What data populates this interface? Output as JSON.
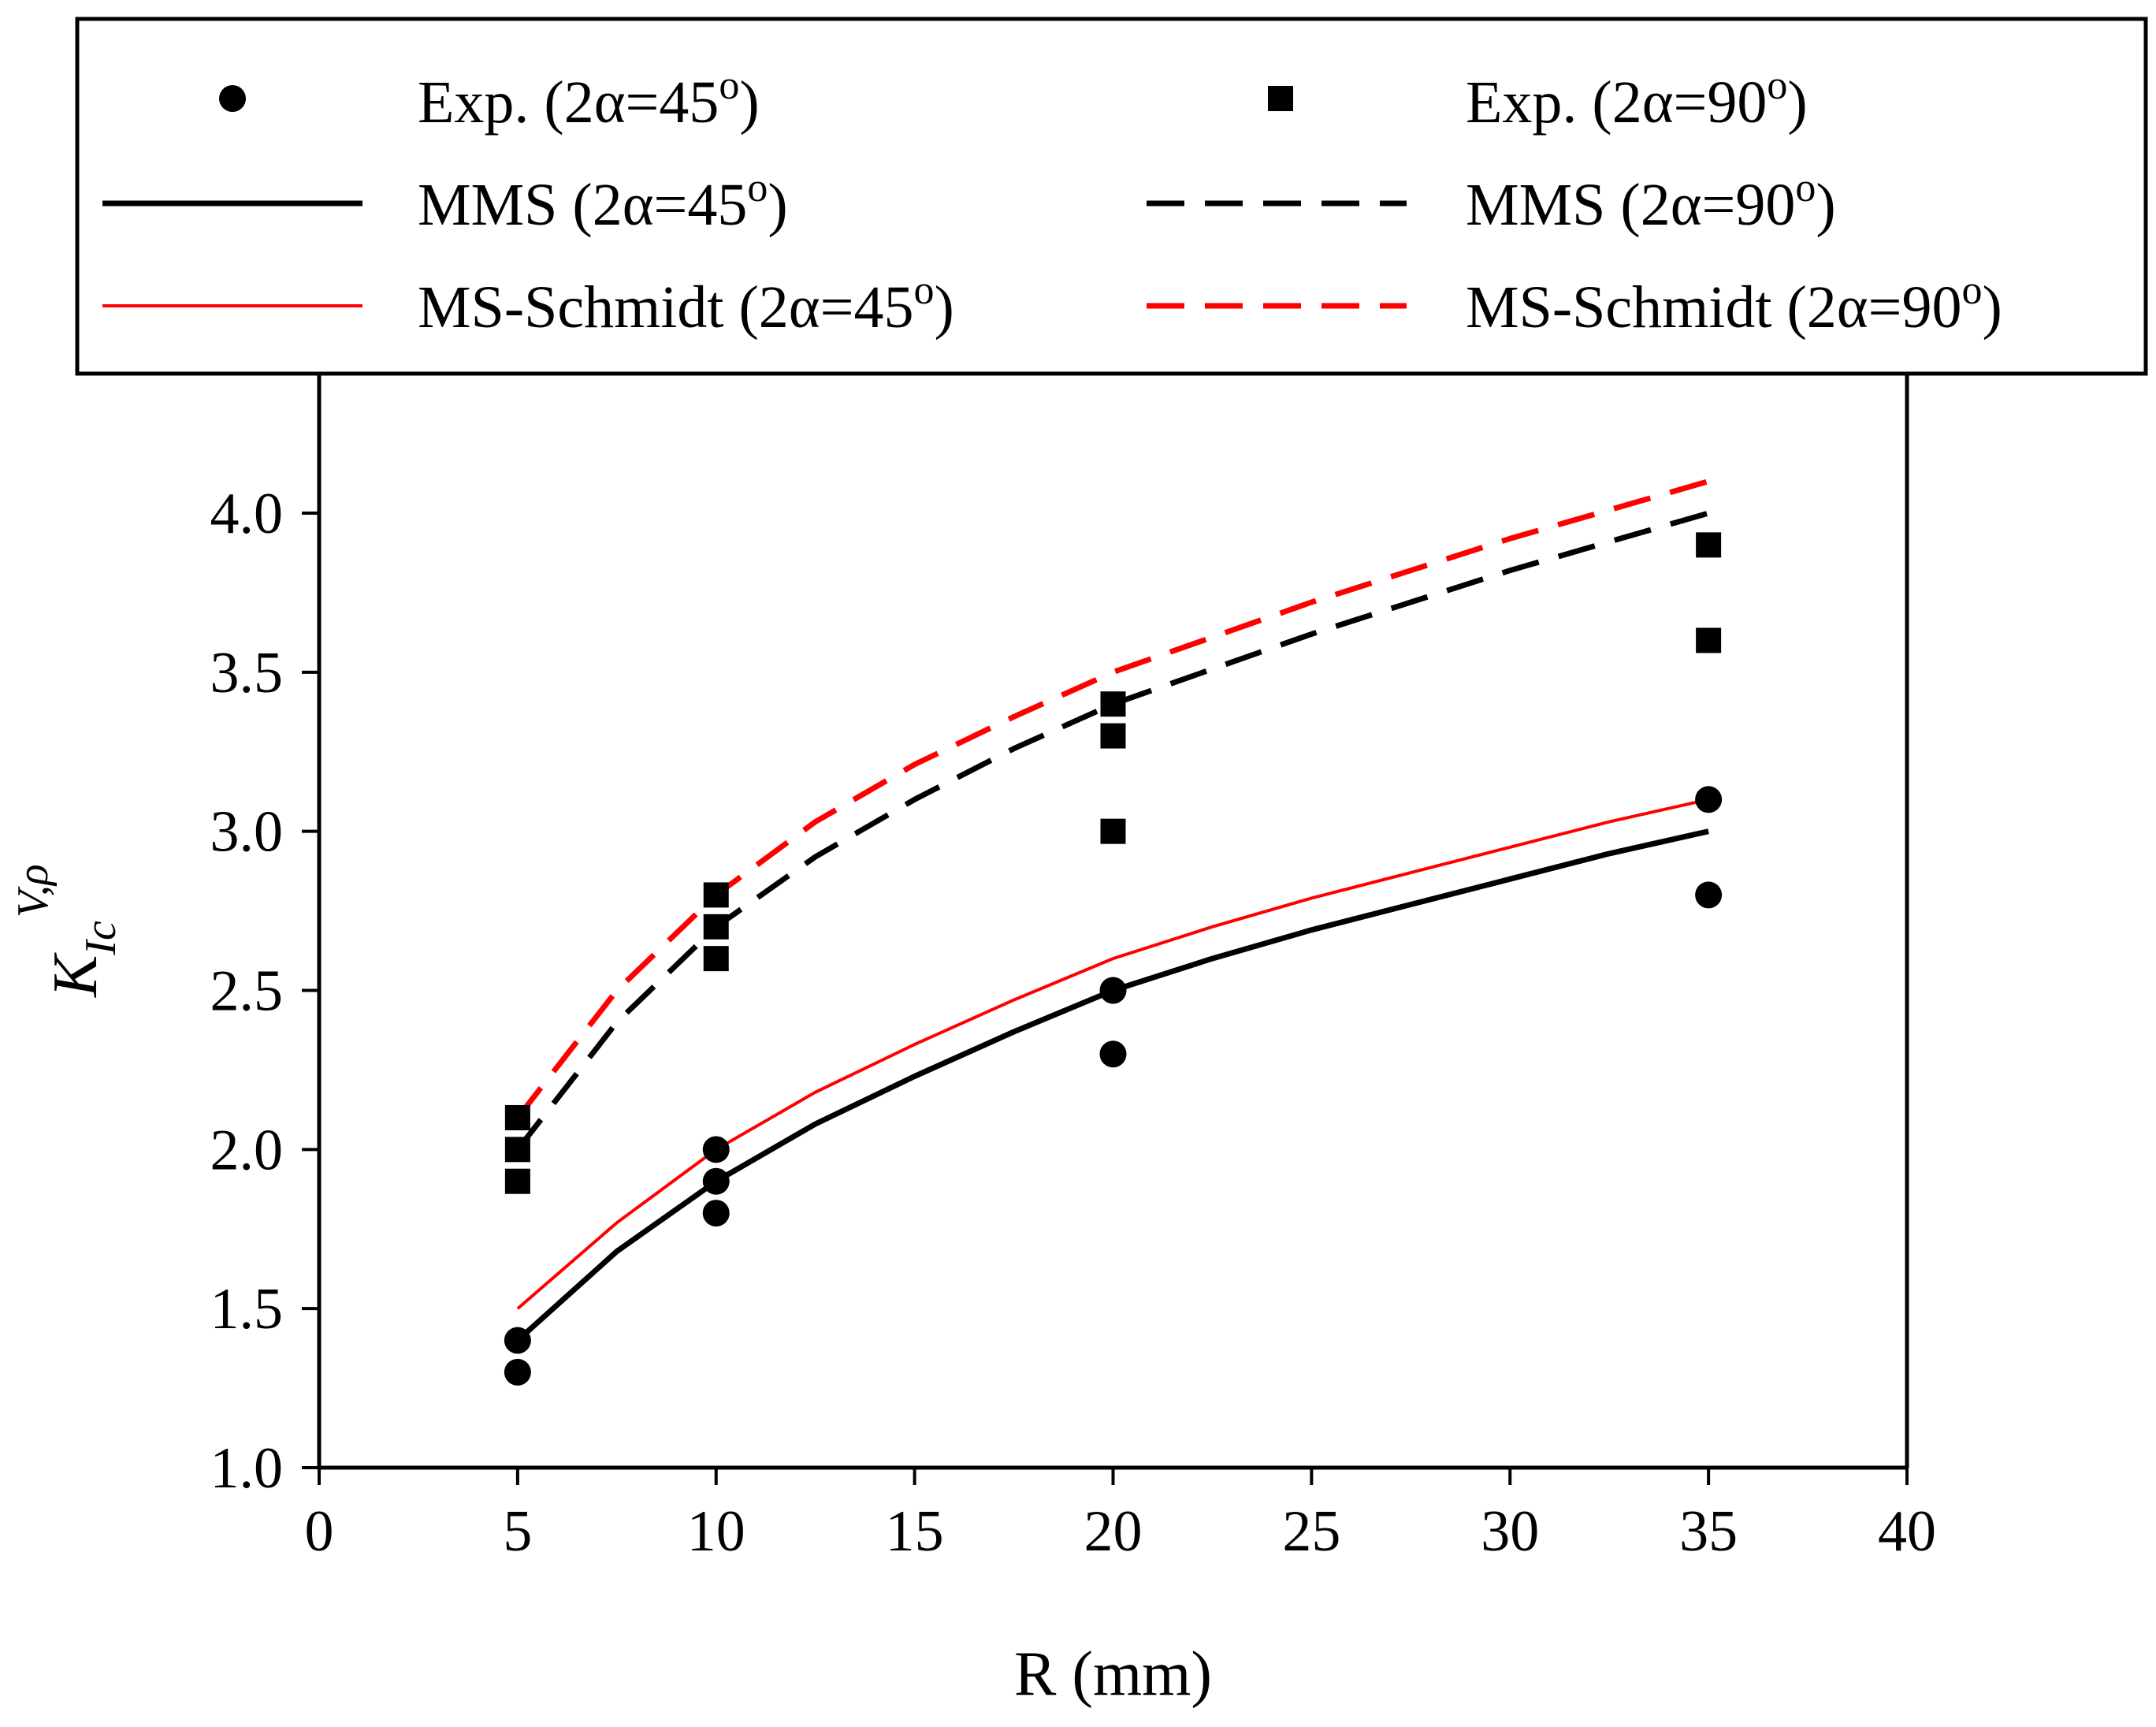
{
  "chart_data": {
    "type": "scatter",
    "title": "",
    "xlabel": "R (mm)",
    "ylabel": {
      "base": "K",
      "subscript": "Ic",
      "superscript": "V,ρ"
    },
    "xlim": [
      0,
      40
    ],
    "ylim": [
      1.0,
      4.3
    ],
    "xticks": [
      "0",
      "5",
      "10",
      "15",
      "20",
      "25",
      "30",
      "35",
      "40"
    ],
    "yticks": [
      "1.0",
      "1.5",
      "2.0",
      "2.5",
      "3.0",
      "3.5",
      "4.0"
    ],
    "grid": false,
    "legend_position": "top",
    "series": [
      {
        "name": "Exp. (2α=45°)",
        "label_main": "Exp. (2α=45",
        "label_sup": "o",
        "label_end": ")",
        "kind": "marker",
        "marker": "circle",
        "color": "#000000",
        "points": [
          [
            5,
            1.4
          ],
          [
            5,
            1.3
          ],
          [
            10,
            2.0
          ],
          [
            10,
            1.9
          ],
          [
            10,
            1.8
          ],
          [
            20,
            2.5
          ],
          [
            20,
            2.3
          ],
          [
            35,
            3.1
          ],
          [
            35,
            2.8
          ]
        ]
      },
      {
        "name": "Exp. (2α=90°)",
        "label_main": "Exp. (2α=90",
        "label_sup": "o",
        "label_end": ")",
        "kind": "marker",
        "marker": "square",
        "color": "#000000",
        "points": [
          [
            5,
            2.1
          ],
          [
            5,
            2.0
          ],
          [
            5,
            1.9
          ],
          [
            10,
            2.8
          ],
          [
            10,
            2.7
          ],
          [
            10,
            2.6
          ],
          [
            20,
            3.4
          ],
          [
            20,
            3.3
          ],
          [
            20,
            3.0
          ],
          [
            35,
            3.9
          ],
          [
            35,
            3.6
          ]
        ]
      },
      {
        "name": "MMS (2α=45°)",
        "label_main": "MMS (2α=45",
        "label_sup": "o",
        "label_end": ")",
        "kind": "line",
        "style": "solid",
        "color": "#000000",
        "x": [
          5,
          7.5,
          10,
          12.5,
          15,
          17.5,
          20,
          22.5,
          25,
          27.5,
          30,
          32.5,
          35
        ],
        "y": [
          1.4,
          1.68,
          1.9,
          2.08,
          2.23,
          2.37,
          2.5,
          2.6,
          2.69,
          2.77,
          2.85,
          2.93,
          3.0
        ]
      },
      {
        "name": "MMS (2α=90°)",
        "label_main": "MMS (2α=90",
        "label_sup": "o",
        "label_end": ")",
        "kind": "line",
        "style": "dashed",
        "color": "#000000",
        "x": [
          5,
          7.5,
          10,
          12.5,
          15,
          17.5,
          20,
          22.5,
          25,
          27.5,
          30,
          32.5,
          35
        ],
        "y": [
          2.0,
          2.4,
          2.7,
          2.92,
          3.1,
          3.26,
          3.4,
          3.51,
          3.62,
          3.72,
          3.82,
          3.91,
          4.0
        ]
      },
      {
        "name": "MS-Schmidt (2α=45°)",
        "label_main": "MS-Schmidt (2α=45",
        "label_sup": "o",
        "label_end": ")",
        "kind": "line",
        "style": "solid-thin",
        "color": "#ff0000",
        "x": [
          5,
          7.5,
          10,
          12.5,
          15,
          17.5,
          20,
          22.5,
          25,
          27.5,
          30,
          32.5,
          35
        ],
        "y": [
          1.5,
          1.77,
          2.0,
          2.18,
          2.33,
          2.47,
          2.6,
          2.7,
          2.79,
          2.87,
          2.95,
          3.03,
          3.1
        ]
      },
      {
        "name": "MS-Schmidt (2α=90°)",
        "label_main": "MS-Schmidt (2α=90",
        "label_sup": "o",
        "label_end": ")",
        "kind": "line",
        "style": "dashed",
        "color": "#ff0000",
        "x": [
          5,
          7.5,
          10,
          12.5,
          15,
          17.5,
          20,
          22.5,
          25,
          27.5,
          30,
          32.5,
          35
        ],
        "y": [
          2.1,
          2.5,
          2.8,
          3.03,
          3.21,
          3.36,
          3.5,
          3.61,
          3.72,
          3.82,
          3.92,
          4.01,
          4.1
        ]
      }
    ]
  }
}
